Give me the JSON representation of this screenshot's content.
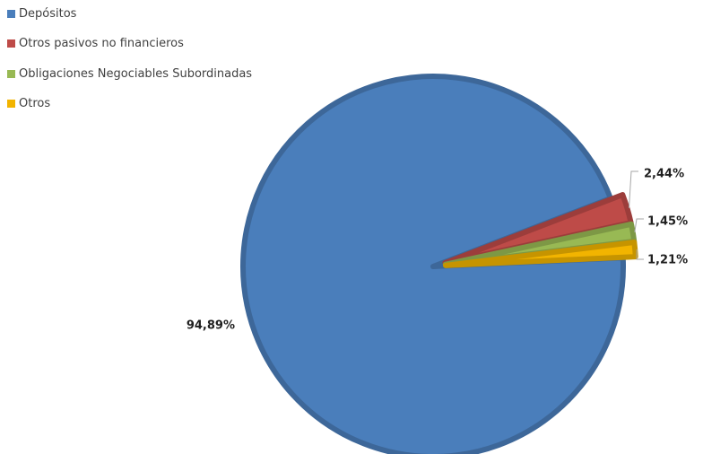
{
  "chart_data": {
    "type": "pie",
    "categories": [
      "Depósitos",
      "Otros pasivos no financieros",
      "Obligaciones Negociables Subordinadas",
      "Otros"
    ],
    "values": [
      94.89,
      2.44,
      1.45,
      1.21
    ],
    "data_labels": [
      "94,89%",
      "2,44%",
      "1,45%",
      "1,21%"
    ],
    "colors": [
      "#4a7ebb",
      "#be4b48",
      "#98b954",
      "#f2b400"
    ],
    "legend_position": "top-left",
    "exploded_slices": [
      "Otros pasivos no financieros",
      "Obligaciones Negociables Subordinadas",
      "Otros"
    ]
  }
}
